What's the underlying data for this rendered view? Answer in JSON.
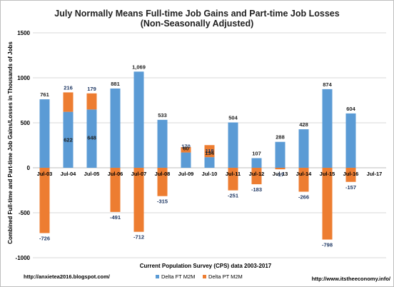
{
  "chart_data": {
    "type": "bar",
    "stacked": true,
    "title": "July Normally Means Full-time Job Gains and Part-time Job Losses",
    "subtitle": "(Non-Seasonally Adjusted)",
    "xlabel": "Current Population Survey (CPS) data 2003-2017",
    "ylabel": "Combined Full-time and Part-time Job Gains/Losses in Thousands of Jobs",
    "ylim": [
      -1000,
      1500
    ],
    "yticks": [
      -1000,
      -500,
      0,
      500,
      1000,
      1500
    ],
    "grid": true,
    "legend_position": "bottom",
    "categories": [
      "Jul-03",
      "Jul-04",
      "Jul-05",
      "Jul-06",
      "Jul-07",
      "Jul-08",
      "Jul-09",
      "Jul-10",
      "Jul-11",
      "Jul-12",
      "Jul-13",
      "Jul-14",
      "Jul-15",
      "Jul-16",
      "Jul-17"
    ],
    "series": [
      {
        "name": "Delta FT M2M",
        "color": "#5b9bd5",
        "values": [
          761,
          622,
          648,
          881,
          1069,
          533,
          170,
          118,
          504,
          107,
          288,
          428,
          874,
          604,
          null
        ]
      },
      {
        "name": "Delta PT M2M",
        "color": "#ed7d31",
        "values": [
          -726,
          216,
          179,
          -491,
          -712,
          -315,
          60,
          134,
          -251,
          -183,
          -17,
          -266,
          -798,
          -157,
          null
        ]
      }
    ],
    "data_labels": {
      "ft": [
        "761",
        "622",
        "648",
        "881",
        "1,069",
        "533",
        "170",
        "118",
        "504",
        "107",
        "288",
        "428",
        "874",
        "604",
        ""
      ],
      "pt": [
        "-726",
        "216",
        "179",
        "-491",
        "-712",
        "-315",
        "60",
        "134",
        "-251",
        "-183",
        "-17",
        "-266",
        "-798",
        "-157",
        ""
      ]
    }
  },
  "footer": {
    "left_url": "http://anxietea2016.blogspot.com/",
    "right_url": "http://www.itstheeconomy.info/"
  },
  "colors": {
    "ft": "#5b9bd5",
    "pt": "#ed7d31",
    "label_blue": "#1f3864",
    "label_dark": "#1f1f1f",
    "grid": "#d9d9d9"
  }
}
